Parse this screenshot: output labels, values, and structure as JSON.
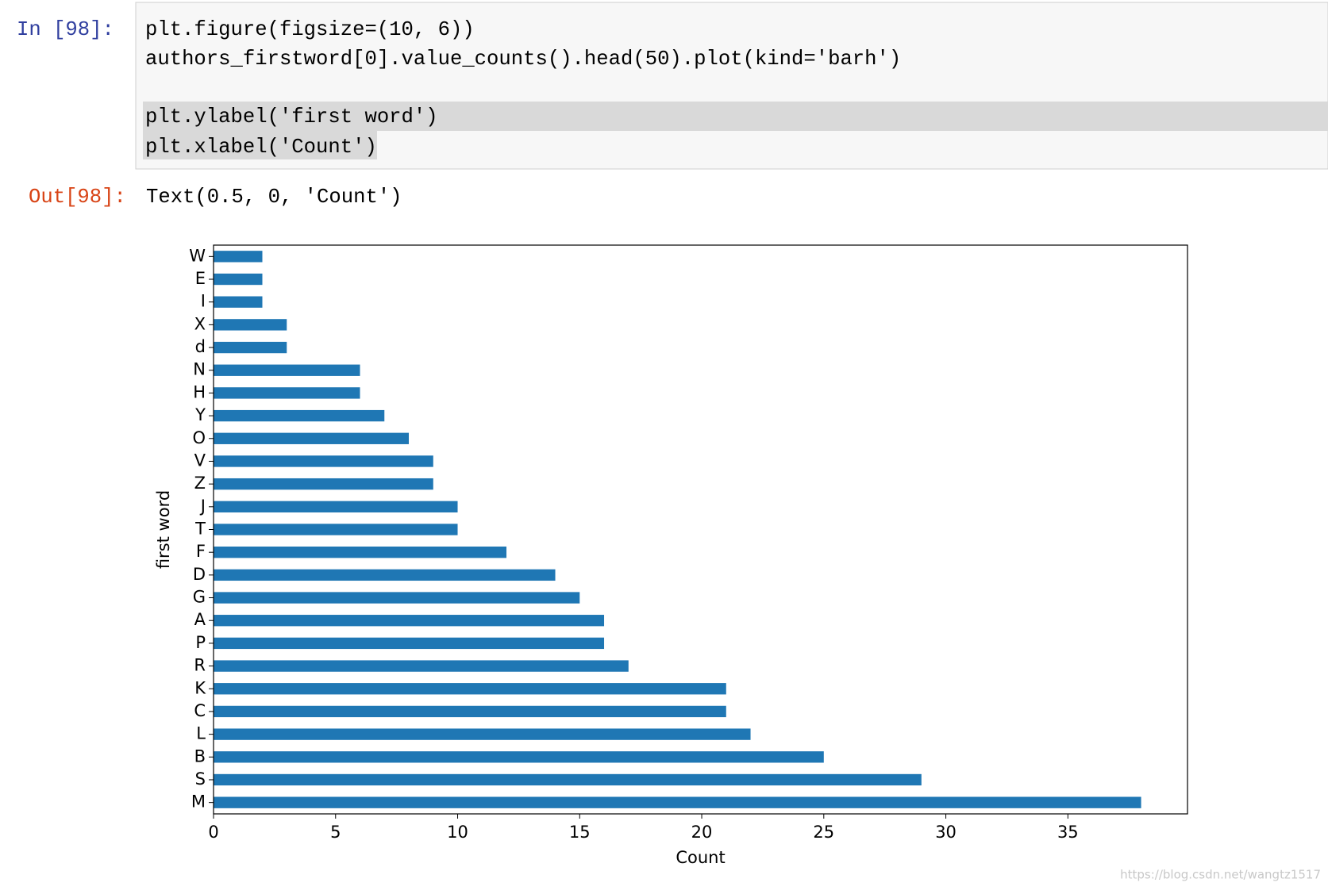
{
  "cell": {
    "prompt_in": "In  [98]:",
    "code": [
      "plt.figure(figsize=(10, 6))",
      "authors_firstword[0].value_counts().head(50).plot(kind='barh')",
      "plt.ylabel('first word')",
      "plt.xlabel('Count')"
    ],
    "prompt_out": "Out[98]:",
    "output": "Text(0.5, 0, 'Count')"
  },
  "chart_data": {
    "type": "barh",
    "ylabel": "first word",
    "xlabel": "Count",
    "color": "#1f77b4",
    "categories": [
      "M",
      "S",
      "B",
      "L",
      "C",
      "K",
      "R",
      "P",
      "A",
      "G",
      "D",
      "F",
      "T",
      "J",
      "Z",
      "V",
      "O",
      "Y",
      "H",
      "N",
      "d",
      "X",
      "I",
      "E",
      "W"
    ],
    "values": [
      38,
      29,
      25,
      22,
      21,
      21,
      17,
      16,
      16,
      15,
      14,
      12,
      10,
      10,
      9,
      9,
      8,
      7,
      6,
      6,
      3,
      3,
      2,
      2,
      2
    ],
    "xlim": [
      0,
      39.9
    ],
    "xticks": [
      0,
      5,
      10,
      15,
      20,
      25,
      30,
      35
    ]
  },
  "watermark": "https://blog.csdn.net/wangtz1517"
}
